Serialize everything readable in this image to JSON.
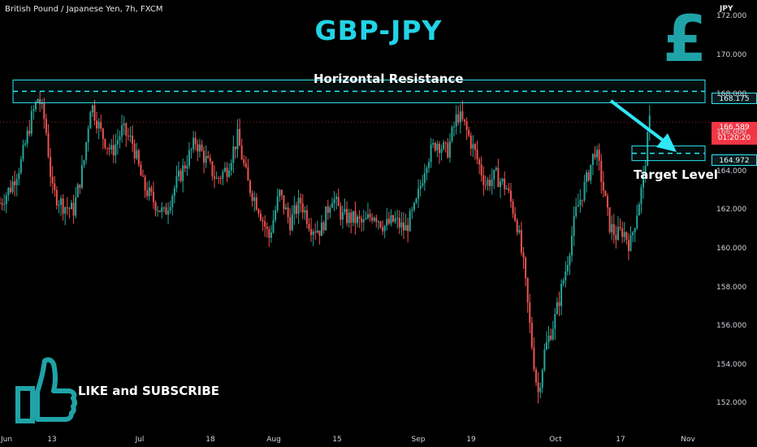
{
  "header": {
    "symbol": "British Pound / Japanese Yen, 7h, FXCM",
    "currency": "JPY",
    "title": "GBP-JPY",
    "currency_icon": "pound-sign-icon",
    "currency_glyph": "£"
  },
  "annotations": {
    "resistance_label": "Horizontal Resistance",
    "target_label": "Target Level",
    "cta_label": "LIKE and SUBSCRIBE",
    "cta_icon": "thumbs-up-icon"
  },
  "price_tags": {
    "resistance": "168.175",
    "target": "164.972",
    "last_price": "166.589",
    "countdown": "01:20:20"
  },
  "colors": {
    "background": "#000000",
    "accent": "#22d3e6",
    "up": "#26a69a",
    "down": "#ef5350",
    "last_price": "#f23645"
  },
  "chart_data": {
    "type": "candlestick",
    "title": "GBP-JPY",
    "xlabel": "",
    "ylabel": "JPY",
    "ylim": [
      150.75,
      172.9
    ],
    "y_ticks": [
      "172.000",
      "170.000",
      "168.000",
      "166.000",
      "164.000",
      "162.000",
      "160.000",
      "158.000",
      "156.000",
      "154.000",
      "152.000"
    ],
    "y_tick_values": [
      172,
      170,
      168,
      166,
      164,
      162,
      160,
      158,
      156,
      154,
      152
    ],
    "x_ticks": [
      "Jun",
      "13",
      "Jul",
      "18",
      "Aug",
      "15",
      "Sep",
      "19",
      "Oct",
      "17",
      "Nov"
    ],
    "levels": {
      "resistance": 168.175,
      "target": 164.972,
      "last": 166.589
    },
    "close_path": [
      {
        "t": 0,
        "c": 162.4
      },
      {
        "t": 0.015,
        "c": 163.2
      },
      {
        "t": 0.03,
        "c": 164.5
      },
      {
        "t": 0.045,
        "c": 166.8
      },
      {
        "t": 0.055,
        "c": 167.9
      },
      {
        "t": 0.065,
        "c": 166.5
      },
      {
        "t": 0.075,
        "c": 163.0
      },
      {
        "t": 0.09,
        "c": 162.3
      },
      {
        "t": 0.105,
        "c": 162.0
      },
      {
        "t": 0.12,
        "c": 164.5
      },
      {
        "t": 0.13,
        "c": 167.6
      },
      {
        "t": 0.145,
        "c": 166.0
      },
      {
        "t": 0.16,
        "c": 165.0
      },
      {
        "t": 0.175,
        "c": 166.2
      },
      {
        "t": 0.19,
        "c": 165.5
      },
      {
        "t": 0.205,
        "c": 163.3
      },
      {
        "t": 0.22,
        "c": 162.5
      },
      {
        "t": 0.235,
        "c": 161.8
      },
      {
        "t": 0.25,
        "c": 163.2
      },
      {
        "t": 0.265,
        "c": 164.4
      },
      {
        "t": 0.28,
        "c": 165.6
      },
      {
        "t": 0.295,
        "c": 164.6
      },
      {
        "t": 0.31,
        "c": 163.6
      },
      {
        "t": 0.325,
        "c": 164.2
      },
      {
        "t": 0.34,
        "c": 165.8
      },
      {
        "t": 0.355,
        "c": 163.4
      },
      {
        "t": 0.37,
        "c": 162.2
      },
      {
        "t": 0.385,
        "c": 160.6
      },
      {
        "t": 0.4,
        "c": 162.9
      },
      {
        "t": 0.415,
        "c": 161.4
      },
      {
        "t": 0.43,
        "c": 162.5
      },
      {
        "t": 0.445,
        "c": 161.2
      },
      {
        "t": 0.46,
        "c": 161.0
      },
      {
        "t": 0.475,
        "c": 162.8
      },
      {
        "t": 0.49,
        "c": 161.7
      },
      {
        "t": 0.505,
        "c": 161.6
      },
      {
        "t": 0.52,
        "c": 161.3
      },
      {
        "t": 0.535,
        "c": 161.9
      },
      {
        "t": 0.55,
        "c": 161.2
      },
      {
        "t": 0.565,
        "c": 161.5
      },
      {
        "t": 0.58,
        "c": 161.0
      },
      {
        "t": 0.595,
        "c": 162.2
      },
      {
        "t": 0.61,
        "c": 164.6
      },
      {
        "t": 0.625,
        "c": 165.6
      },
      {
        "t": 0.64,
        "c": 165.0
      },
      {
        "t": 0.655,
        "c": 167.0
      },
      {
        "t": 0.665,
        "c": 166.4
      },
      {
        "t": 0.68,
        "c": 165.0
      },
      {
        "t": 0.695,
        "c": 163.4
      },
      {
        "t": 0.71,
        "c": 163.8
      },
      {
        "t": 0.725,
        "c": 163.2
      },
      {
        "t": 0.74,
        "c": 161.4
      },
      {
        "t": 0.75,
        "c": 159.0
      },
      {
        "t": 0.76,
        "c": 155.5
      },
      {
        "t": 0.77,
        "c": 152.5
      },
      {
        "t": 0.78,
        "c": 154.8
      },
      {
        "t": 0.795,
        "c": 156.5
      },
      {
        "t": 0.81,
        "c": 159.0
      },
      {
        "t": 0.825,
        "c": 162.0
      },
      {
        "t": 0.84,
        "c": 163.6
      },
      {
        "t": 0.852,
        "c": 165.2
      },
      {
        "t": 0.862,
        "c": 163.5
      },
      {
        "t": 0.872,
        "c": 161.3
      },
      {
        "t": 0.882,
        "c": 160.7
      },
      {
        "t": 0.892,
        "c": 161.0
      },
      {
        "t": 0.902,
        "c": 160.2
      },
      {
        "t": 0.912,
        "c": 162.0
      },
      {
        "t": 0.92,
        "c": 163.4
      },
      {
        "t": 0.93,
        "c": 166.6
      }
    ]
  }
}
